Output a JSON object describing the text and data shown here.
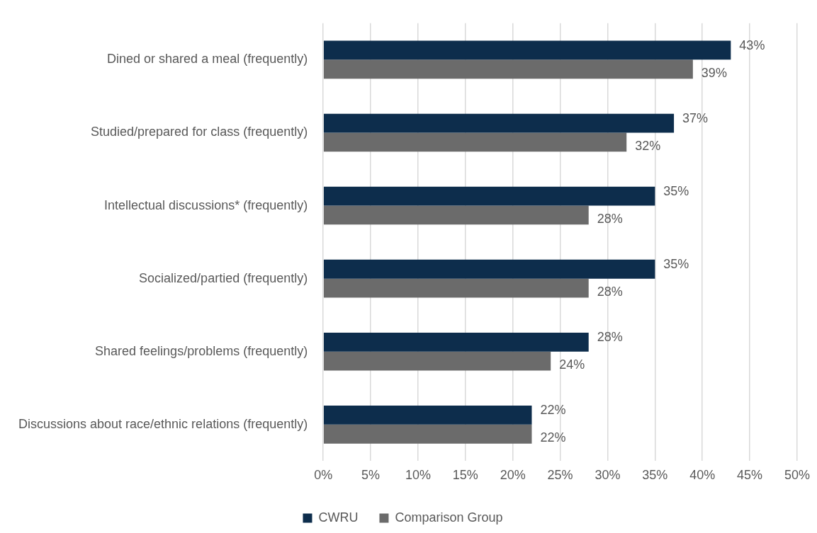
{
  "chart_data": {
    "type": "bar",
    "orientation": "horizontal",
    "categories": [
      "Dined or shared a meal (frequently)",
      "Studied/prepared for class (frequently)",
      "Intellectual discussions* (frequently)",
      "Socialized/partied (frequently)",
      "Shared feelings/problems (frequently)",
      "Discussions about race/ethnic relations (frequently)"
    ],
    "series": [
      {
        "name": "CWRU",
        "color": "#0d2d4c",
        "values": [
          43,
          37,
          35,
          35,
          28,
          22
        ],
        "value_labels": [
          "43%",
          "37%",
          "35%",
          "35%",
          "28%",
          "22%"
        ]
      },
      {
        "name": "Comparison Group",
        "color": "#6b6b6b",
        "values": [
          39,
          32,
          28,
          28,
          24,
          22
        ],
        "value_labels": [
          "39%",
          "32%",
          "28%",
          "28%",
          "24%",
          "22%"
        ]
      }
    ],
    "xlim": [
      0,
      50
    ],
    "xticks": [
      {
        "value": 0,
        "label": "0%"
      },
      {
        "value": 5,
        "label": "5%"
      },
      {
        "value": 10,
        "label": "10%"
      },
      {
        "value": 15,
        "label": "15%"
      },
      {
        "value": 20,
        "label": "20%"
      },
      {
        "value": 25,
        "label": "25%"
      },
      {
        "value": 30,
        "label": "30%"
      },
      {
        "value": 35,
        "label": "35%"
      },
      {
        "value": 40,
        "label": "40%"
      },
      {
        "value": 45,
        "label": "45%"
      },
      {
        "value": 50,
        "label": "50%"
      }
    ],
    "grid": "x",
    "legend": "bottom"
  }
}
